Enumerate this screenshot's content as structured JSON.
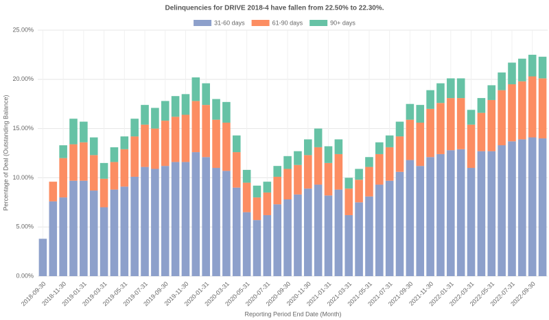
{
  "chart_data": {
    "type": "stacked_bar",
    "title": "Delinquencies for DRIVE 2018-4 have fallen from 22.50% to 22.30%.",
    "x_label": "Reporting Period End Date (Month)",
    "y_label": "Percentage of Deal (Outstanding Balance)",
    "categories": [
      "2018-09-30",
      null,
      "2018-11-30",
      null,
      "2019-01-31",
      null,
      "2019-03-31",
      null,
      "2019-05-31",
      null,
      "2019-07-31",
      null,
      "2019-09-30",
      null,
      "2019-11-30",
      null,
      "2020-01-31",
      null,
      "2020-03-31",
      null,
      "2020-05-31",
      null,
      "2020-07-31",
      null,
      "2020-09-30",
      null,
      "2020-11-30",
      null,
      "2021-01-31",
      null,
      "2021-03-31",
      null,
      "2021-05-31",
      null,
      "2021-07-31",
      null,
      "2021-09-30",
      null,
      "2021-11-30",
      null,
      "2022-01-31",
      null,
      "2022-03-31",
      null,
      "2022-05-31",
      null,
      "2022-07-31",
      null,
      "2022-09-30",
      null
    ],
    "series": [
      {
        "name": "31-60 days",
        "color": "#8da0cb",
        "values": [
          3.8,
          7.6,
          8.0,
          9.7,
          9.7,
          8.7,
          7.0,
          8.8,
          9.1,
          10.1,
          11.1,
          10.9,
          11.2,
          11.6,
          11.6,
          12.6,
          12.1,
          11.0,
          10.7,
          9.0,
          6.5,
          5.7,
          6.2,
          7.3,
          7.8,
          8.3,
          8.9,
          9.3,
          8.2,
          8.8,
          6.2,
          7.5,
          8.1,
          9.3,
          9.7,
          10.6,
          11.8,
          11.2,
          12.1,
          12.4,
          12.8,
          12.9,
          11.0,
          12.7,
          12.7,
          13.3,
          13.7,
          13.9,
          14.1,
          14.0
        ]
      },
      {
        "name": "61-90 days",
        "color": "#fc8d62",
        "values": [
          0,
          2.0,
          4.0,
          3.7,
          3.9,
          3.6,
          2.9,
          2.8,
          3.8,
          4.1,
          4.3,
          4.1,
          4.6,
          4.6,
          4.8,
          5.2,
          5.3,
          4.9,
          4.9,
          3.6,
          3.0,
          2.3,
          2.3,
          2.8,
          3.1,
          3.0,
          3.4,
          3.8,
          3.3,
          3.6,
          2.7,
          2.3,
          3.0,
          3.1,
          3.4,
          3.6,
          4.1,
          4.4,
          4.9,
          5.2,
          5.3,
          5.2,
          4.4,
          3.9,
          5.2,
          5.6,
          5.8,
          5.9,
          6.2,
          6.1
        ]
      },
      {
        "name": "90+ days",
        "color": "#66c2a5",
        "values": [
          0,
          0,
          1.3,
          2.6,
          2.1,
          1.8,
          1.6,
          1.5,
          1.3,
          1.8,
          2.0,
          2.1,
          2.0,
          2.1,
          2.1,
          2.4,
          2.2,
          2.1,
          2.1,
          1.7,
          1.3,
          1.2,
          1.1,
          1.1,
          1.3,
          1.4,
          1.6,
          1.9,
          1.7,
          1.5,
          1.1,
          1.1,
          1.0,
          1.2,
          1.2,
          1.5,
          1.6,
          1.8,
          1.9,
          2.0,
          2.0,
          2.0,
          1.5,
          1.5,
          1.5,
          1.8,
          2.2,
          2.3,
          2.2,
          2.2
        ]
      }
    ],
    "ylim": [
      0,
      25
    ],
    "yticks": [
      {
        "value": 0,
        "label": "0.00%"
      },
      {
        "value": 5,
        "label": "5.00%"
      },
      {
        "value": 10,
        "label": "10.00%"
      },
      {
        "value": 15,
        "label": "15.00%"
      },
      {
        "value": 20,
        "label": "20.00%"
      },
      {
        "value": 25,
        "label": "25.00%"
      }
    ],
    "grid": true,
    "legend": "top"
  }
}
